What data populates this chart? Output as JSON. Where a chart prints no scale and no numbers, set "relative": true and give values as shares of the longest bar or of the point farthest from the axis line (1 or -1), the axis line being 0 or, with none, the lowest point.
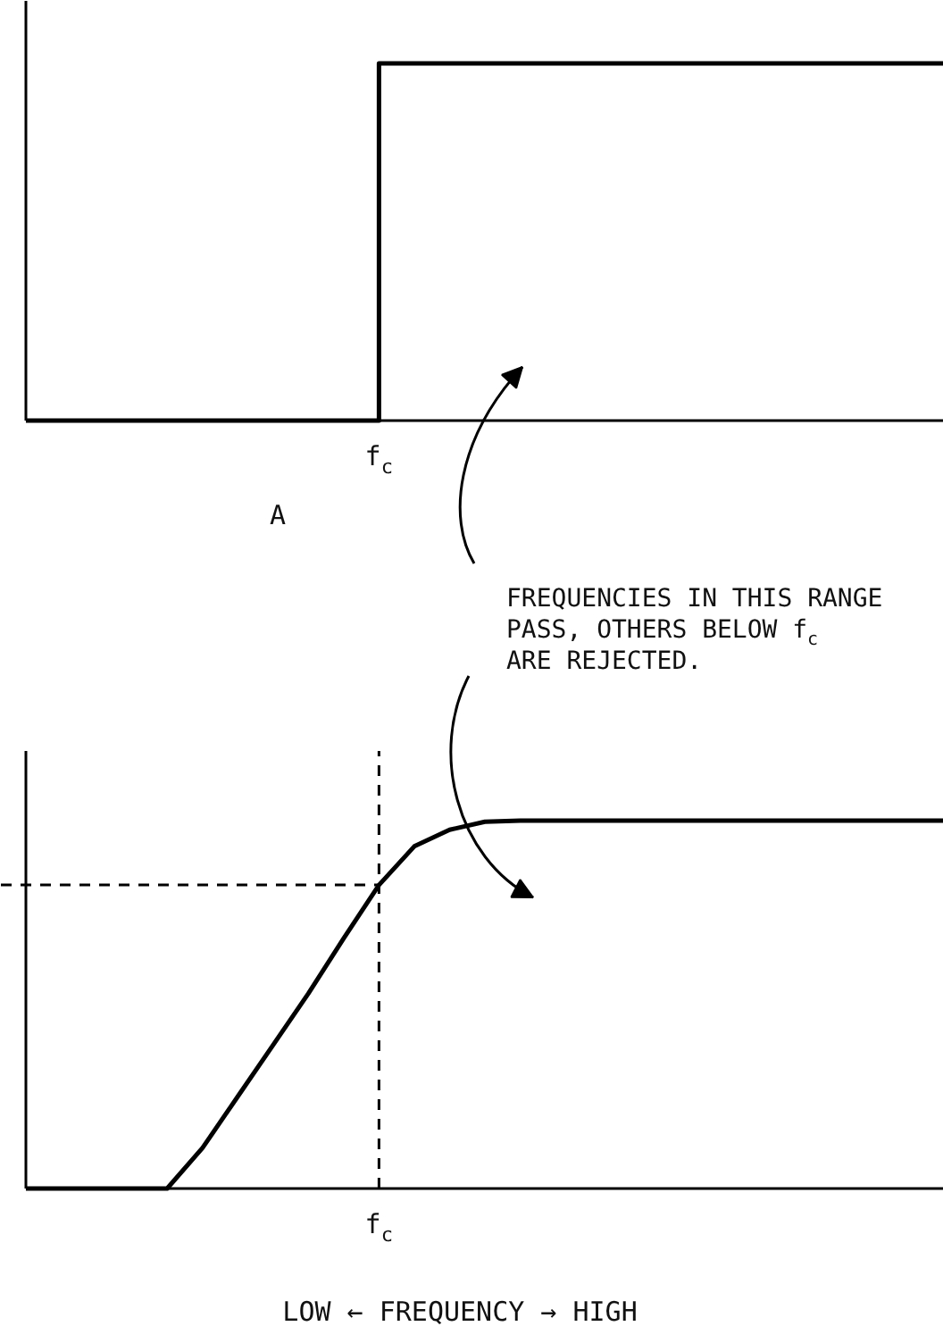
{
  "chart_data": [
    {
      "type": "step",
      "relative": true,
      "annotations": [
        "f$_{c}$",
        "A"
      ],
      "categories": [
        null,
        null,
        null,
        null,
        null,
        null,
        null,
        null,
        null,
        null,
        null,
        null,
        null,
        null,
        null,
        null,
        null,
        null,
        null,
        null,
        null,
        null,
        null,
        null,
        null,
        null,
        null
      ],
      "series": [
        {
          "color": "#000000",
          "values": [
            0,
            0,
            0,
            0,
            0,
            0,
            0,
            0,
            0,
            0,
            1,
            1,
            1,
            1,
            1,
            1,
            1,
            1,
            1,
            1,
            1,
            1,
            1,
            1,
            1,
            1,
            1
          ]
        }
      ]
    },
    {
      "type": "line",
      "relative": true,
      "xlabel": "LOW ← FREQUENCY → HIGH",
      "annotations": [
        "f$_{c}$",
        "FREQUENCIES IN THIS RANGE\nPASS, OTHERS BELOW f$_{c}$\nARE REJECTED."
      ],
      "categories": [
        null,
        null,
        null,
        null,
        null,
        null,
        null,
        null,
        null,
        null,
        null,
        null,
        null,
        null,
        null,
        null,
        null,
        null,
        null,
        null,
        null,
        null,
        null,
        null,
        null,
        null,
        null
      ],
      "ref_lines": [
        {
          "axis": "y",
          "value": 0.825,
          "line_style": "dashed",
          "color": "#000000"
        }
      ],
      "series": [
        {
          "color": "#000000",
          "values": [
            0,
            0,
            0,
            0,
            0,
            0.11,
            0.25,
            0.39,
            0.53,
            0.68,
            0.825,
            0.93,
            0.975,
            0.997,
            1,
            1,
            1,
            1,
            1,
            1,
            1,
            1,
            1,
            1,
            1,
            1,
            1
          ]
        }
      ]
    }
  ]
}
